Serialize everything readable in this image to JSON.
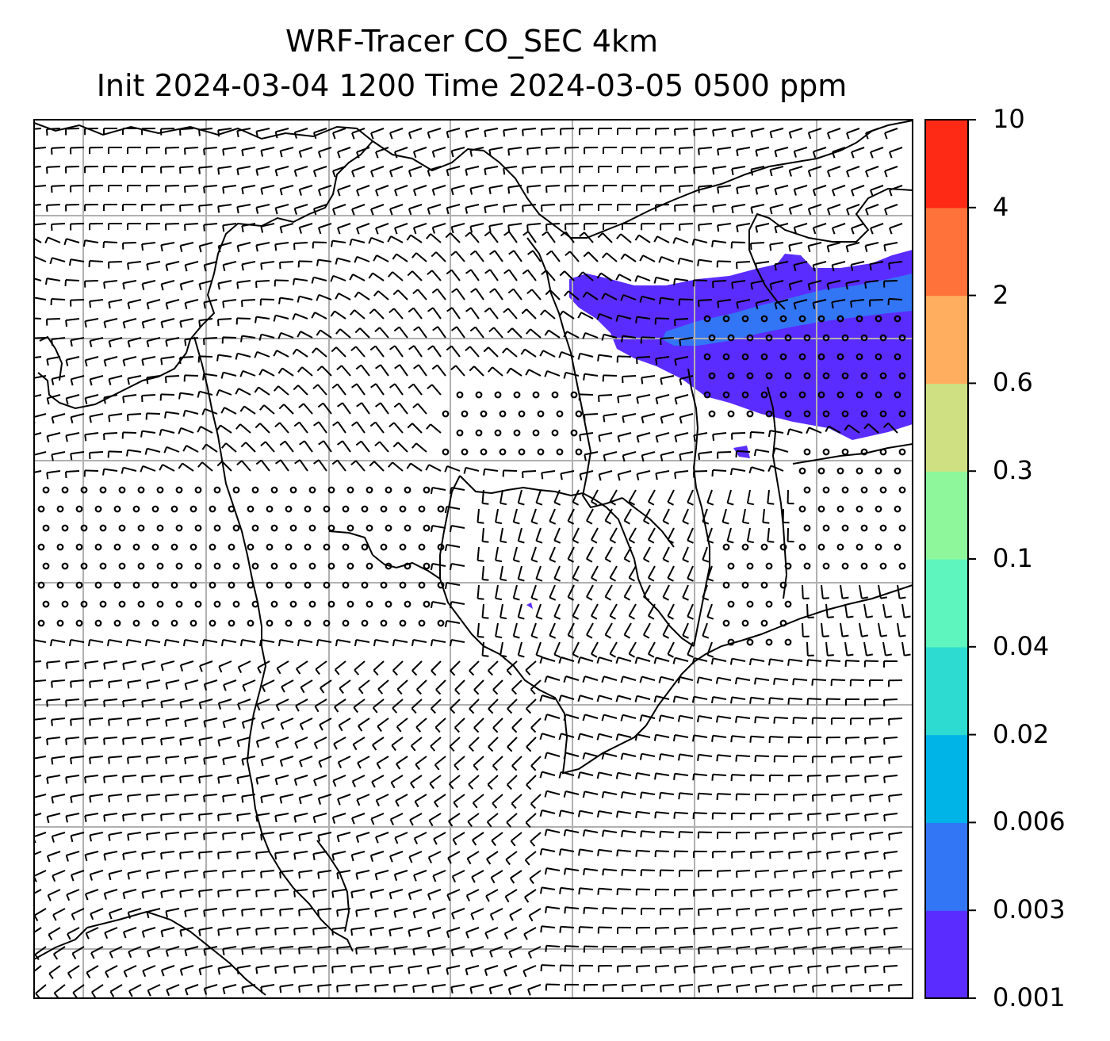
{
  "title": {
    "line1": "WRF-Tracer CO_SEC 4km",
    "line2": "Init 2024-03-04 1200 Time 2024-03-05 0500 ppm"
  },
  "colorbar": {
    "levels": [
      "0.001",
      "0.003",
      "0.006",
      "0.02",
      "0.04",
      "0.1",
      "0.3",
      "0.6",
      "2",
      "4",
      "10"
    ],
    "colors": [
      "#5b2cff",
      "#3276f5",
      "#00b4e8",
      "#2ddbd0",
      "#5ff5be",
      "#8ef79c",
      "#cfe083",
      "#ffad5e",
      "#ff733a",
      "#ff2a16"
    ]
  },
  "map": {
    "tracer_fill_colors": {
      "lowest": "#5b2cff",
      "second": "#3276f5"
    },
    "coastline_color": "#000000",
    "gridline_color": "#b0b0b0",
    "gridlines": true,
    "wind_barbs": true,
    "calm_wind_marker": "open-circle"
  }
}
